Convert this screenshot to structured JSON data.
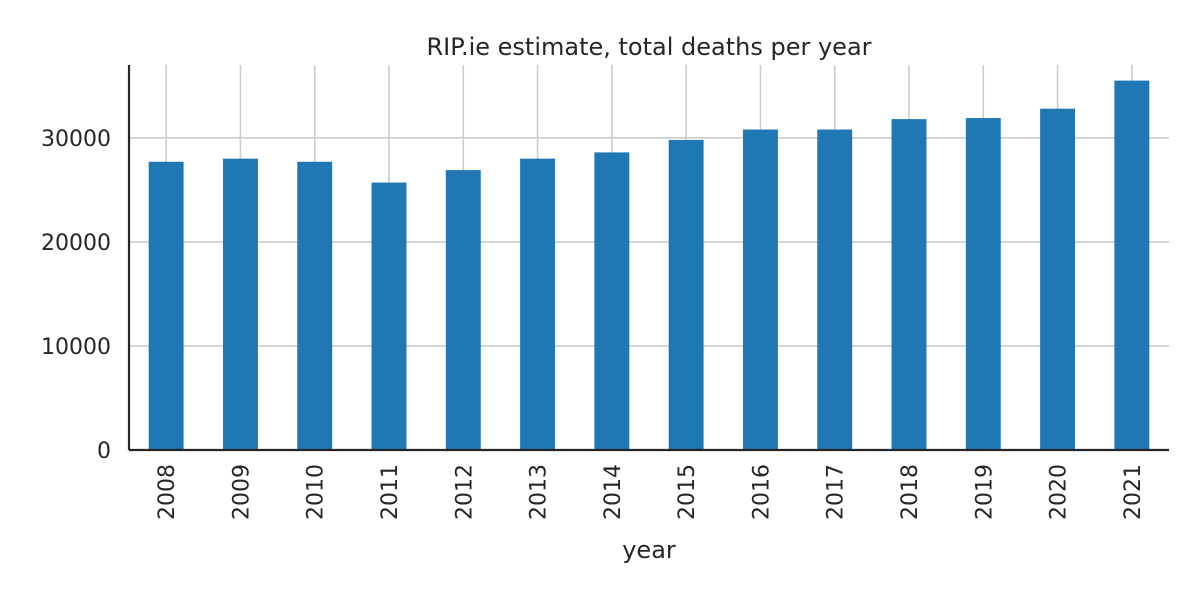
{
  "chart_data": {
    "type": "bar",
    "title": "RIP.ie estimate, total deaths per year",
    "xlabel": "year",
    "ylabel": "",
    "categories": [
      "2008",
      "2009",
      "2010",
      "2011",
      "2012",
      "2013",
      "2014",
      "2015",
      "2016",
      "2017",
      "2018",
      "2019",
      "2020",
      "2021"
    ],
    "values": [
      27700,
      28000,
      27700,
      25700,
      26900,
      28000,
      28600,
      29800,
      30800,
      30800,
      31800,
      31900,
      32800,
      35500
    ],
    "ylim": [
      0,
      37000
    ],
    "yticks": [
      0,
      10000,
      20000,
      30000
    ],
    "ytick_labels": [
      "0",
      "10000",
      "20000",
      "30000"
    ],
    "grid": true,
    "bar_color": "#1f77b4"
  }
}
